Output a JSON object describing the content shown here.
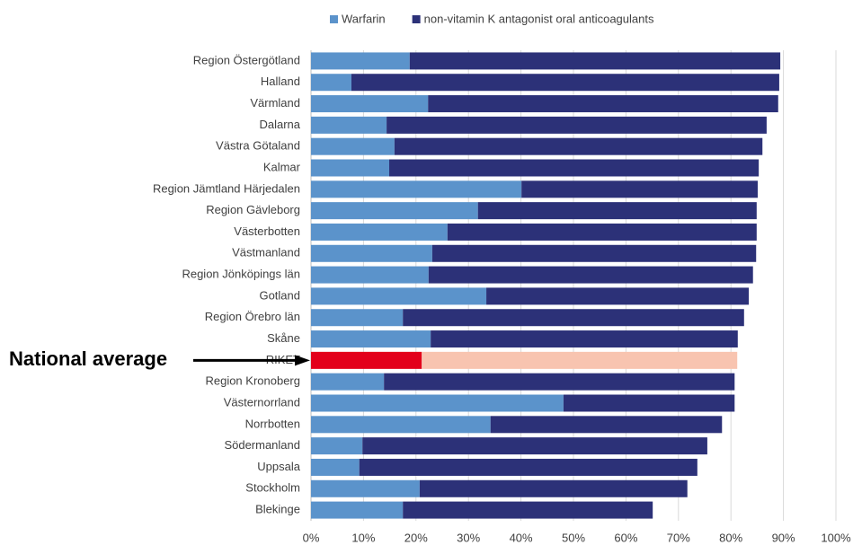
{
  "chart_data": {
    "type": "stacked-bar-horizontal",
    "categories": [
      "Region Östergötland",
      "Halland",
      "Värmland",
      "Dalarna",
      "Västra Götaland",
      "Kalmar",
      "Region Jämtland Härjedalen",
      "Region Gävleborg",
      "Västerbotten",
      "Västmanland",
      "Region Jönköpings län",
      "Gotland",
      "Region Örebro län",
      "Skåne",
      "RIKET",
      "Region Kronoberg",
      "Västernorrland",
      "Norrbotten",
      "Södermanland",
      "Uppsala",
      "Stockholm",
      "Blekinge"
    ],
    "series": [
      {
        "name": "Warfarin",
        "color": "#5b93cb",
        "highlight_color": "#e3001b",
        "values": [
          18.8,
          7.7,
          22.3,
          14.4,
          15.9,
          14.9,
          40.1,
          31.8,
          26.0,
          23.1,
          22.4,
          33.4,
          17.5,
          22.8,
          21.1,
          13.9,
          48.1,
          34.2,
          9.8,
          9.2,
          20.7,
          17.5
        ]
      },
      {
        "name": "non-vitamin K antagonist oral anticoagulants",
        "color": "#2c3178",
        "highlight_color": "#f8c4b0",
        "values": [
          70.6,
          81.5,
          66.7,
          72.4,
          70.1,
          70.4,
          45.0,
          53.1,
          58.9,
          61.7,
          61.8,
          50.0,
          65.0,
          58.5,
          60.1,
          66.8,
          32.6,
          44.1,
          65.7,
          64.4,
          51.0,
          47.6
        ]
      }
    ],
    "highlight_category": "RIKET",
    "annotation": "National average",
    "xlim": [
      0,
      100
    ],
    "xticks": [
      {
        "value": 0,
        "label": "0%"
      },
      {
        "value": 10,
        "label": "10%"
      },
      {
        "value": 20,
        "label": "20%"
      },
      {
        "value": 30,
        "label": "30%"
      },
      {
        "value": 40,
        "label": "40%"
      },
      {
        "value": 50,
        "label": "50%"
      },
      {
        "value": 60,
        "label": "60%"
      },
      {
        "value": 70,
        "label": "70%"
      },
      {
        "value": 80,
        "label": "80%"
      },
      {
        "value": 90,
        "label": "90%"
      },
      {
        "value": 100,
        "label": "100%"
      }
    ],
    "grid": true,
    "legend": "top"
  }
}
